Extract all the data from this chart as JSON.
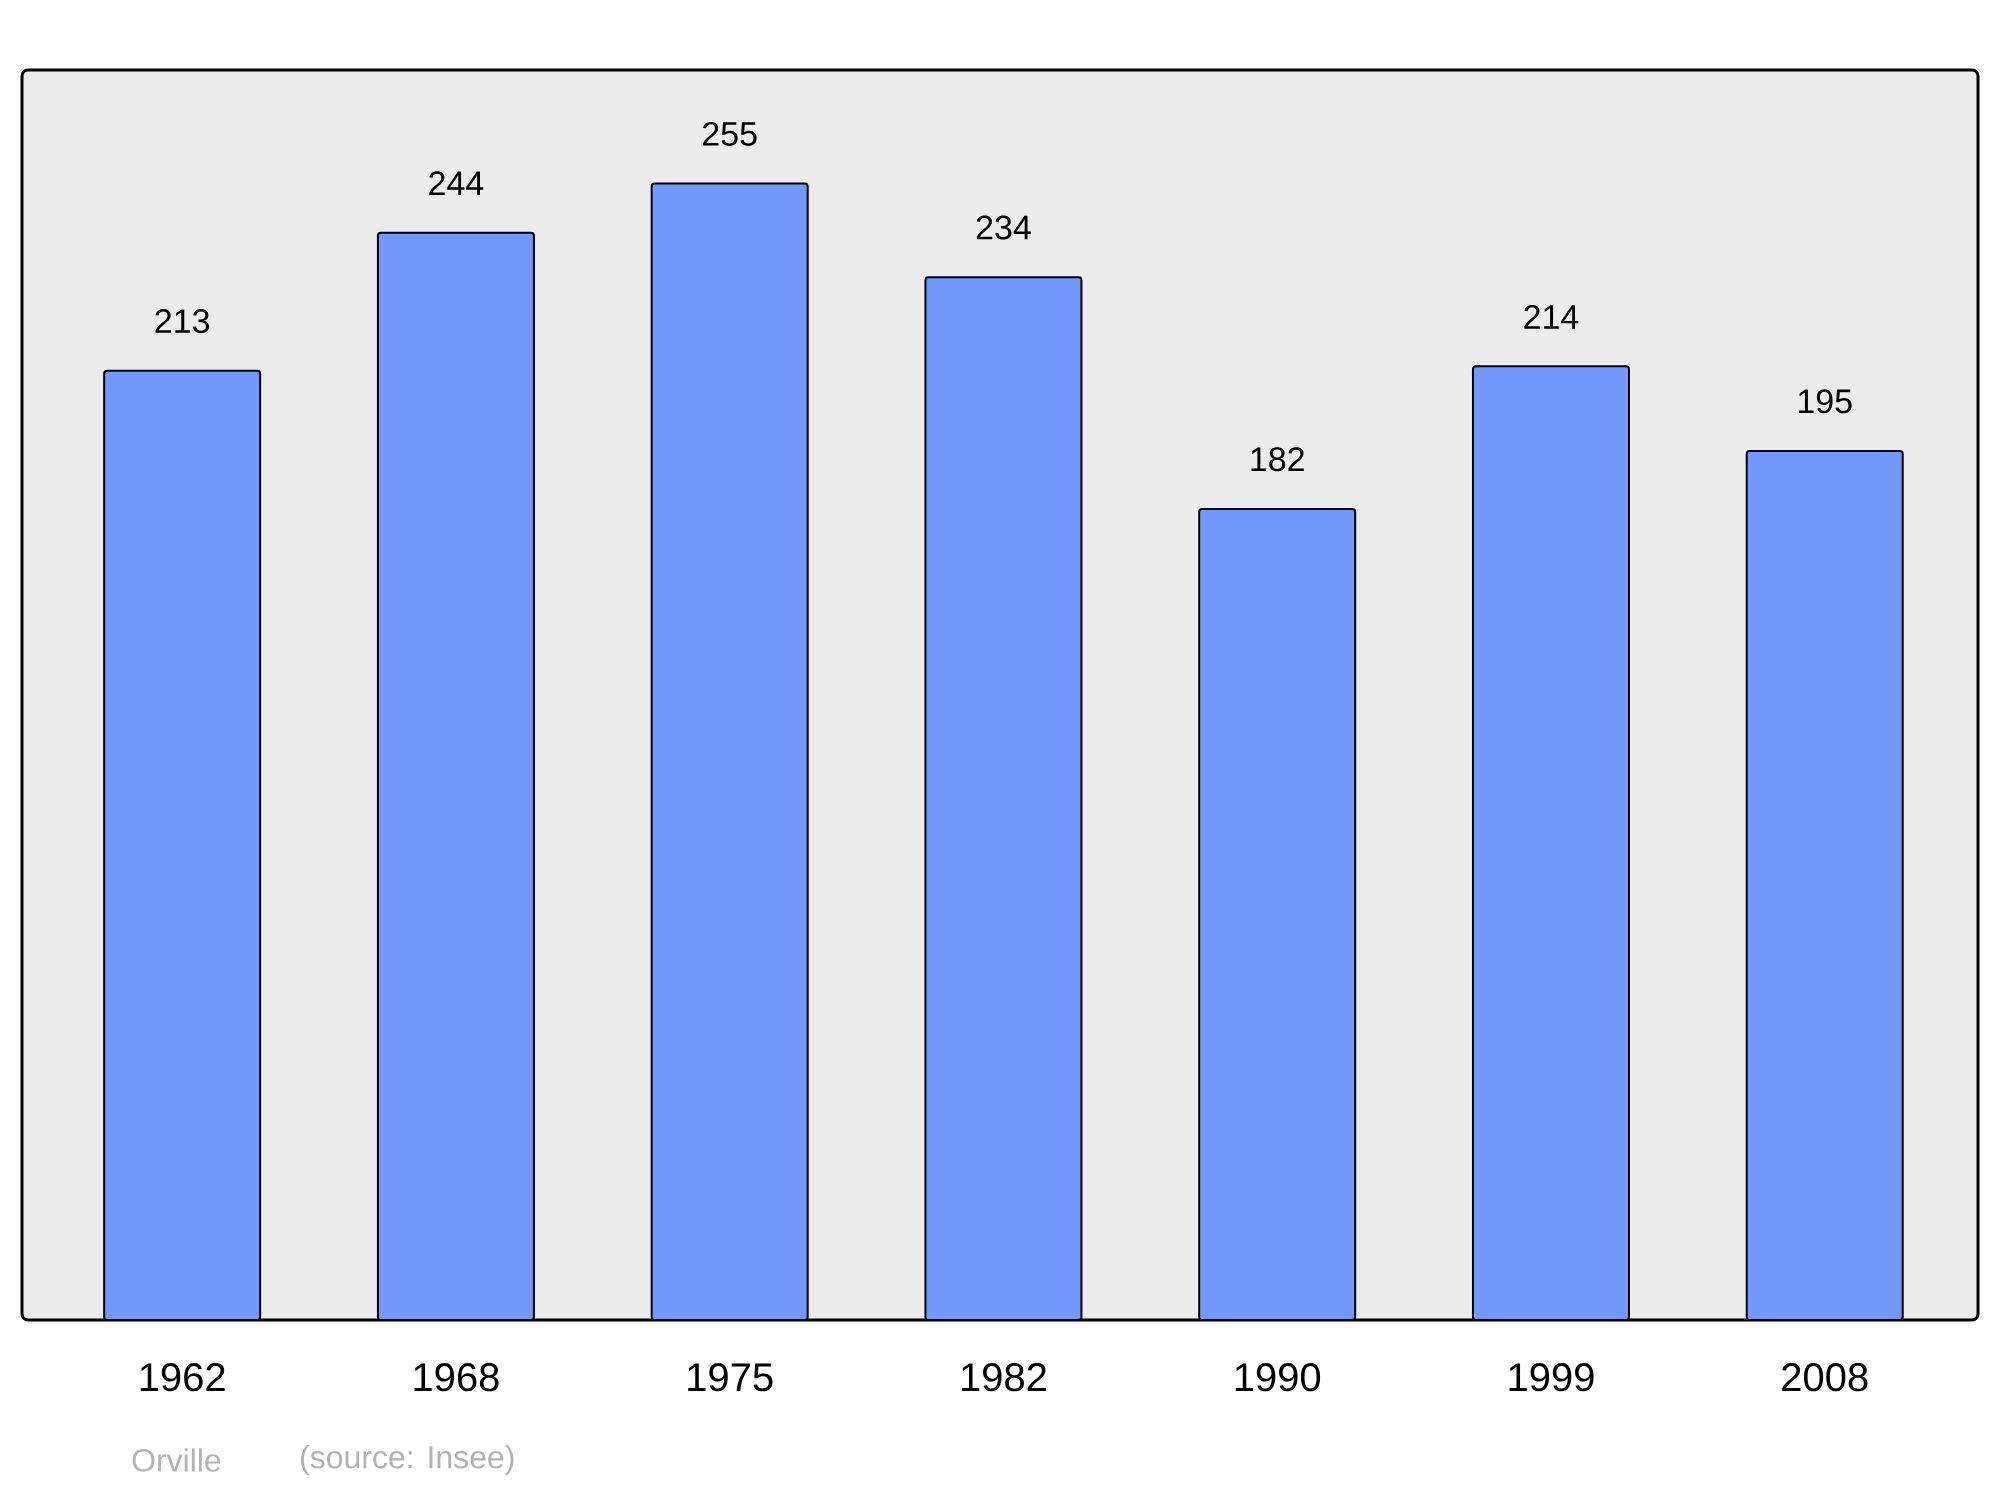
{
  "chart_data": {
    "type": "bar",
    "categories": [
      "1962",
      "1968",
      "1975",
      "1982",
      "1990",
      "1999",
      "2008"
    ],
    "values": [
      213,
      244,
      255,
      234,
      182,
      214,
      195
    ],
    "color": "#7399ff",
    "data_labels": true,
    "annotations": [
      "Orville",
      "(source: Insee)"
    ]
  }
}
